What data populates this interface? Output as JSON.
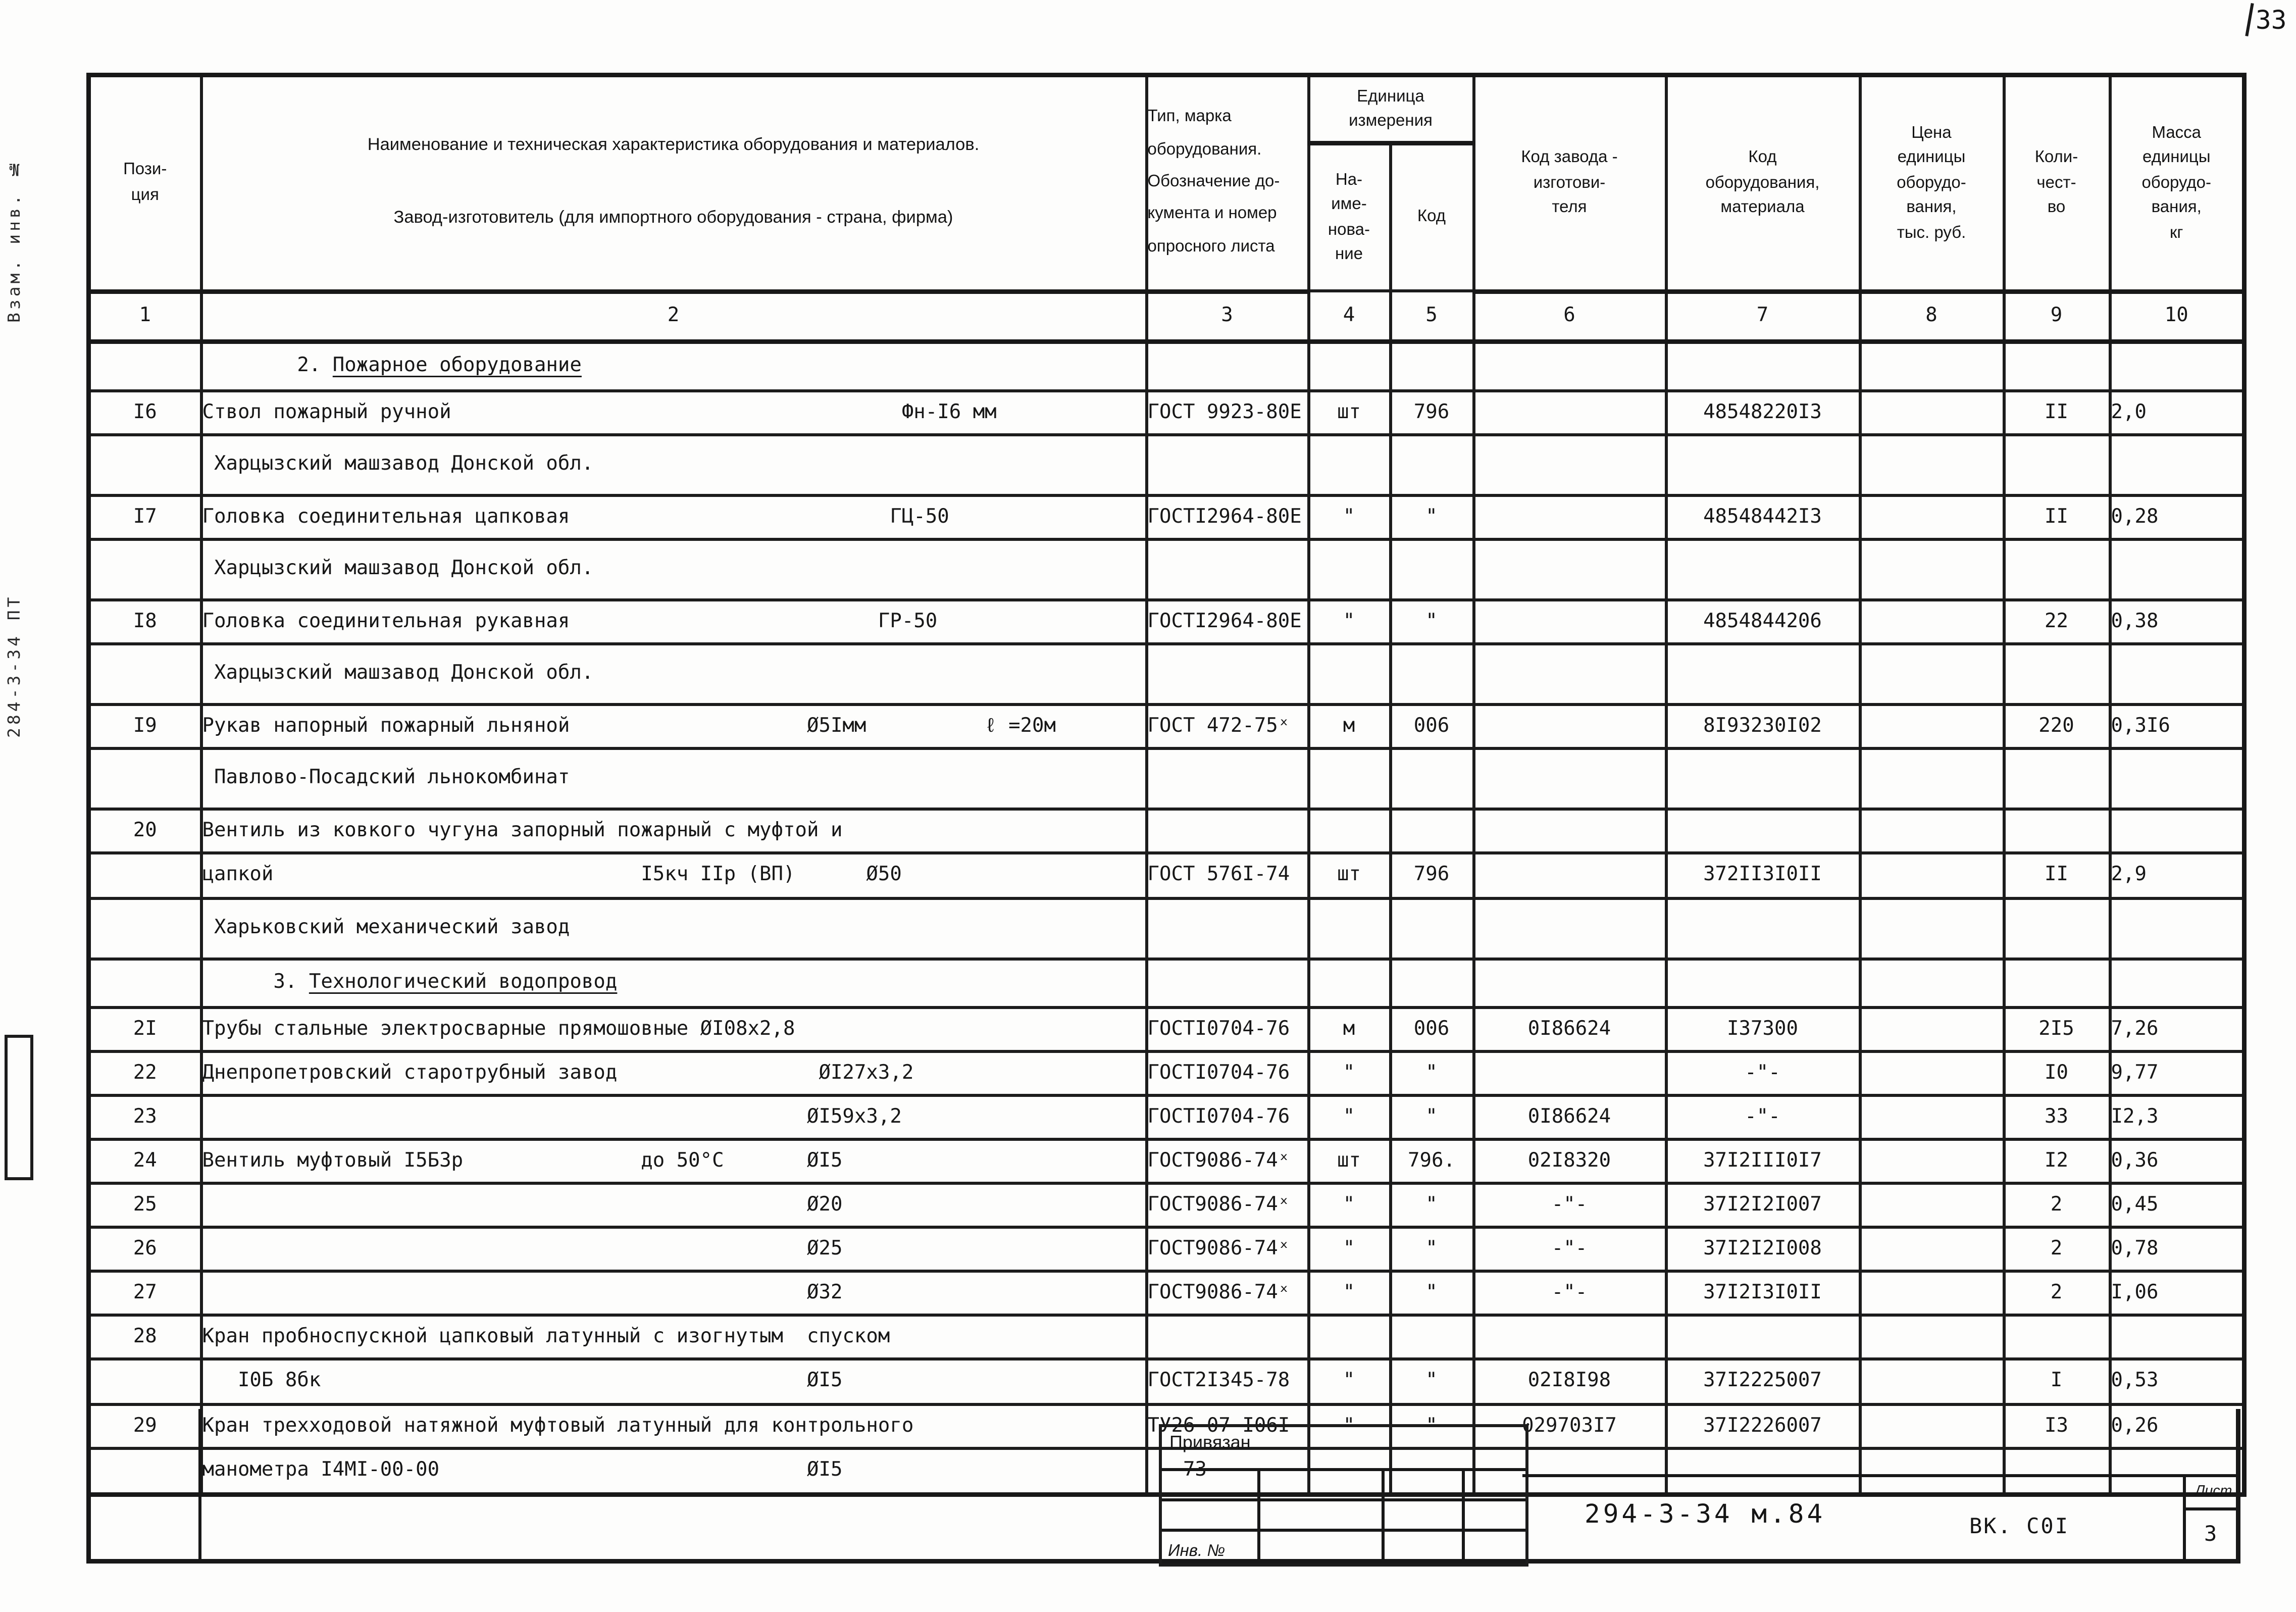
{
  "page": {
    "corner_number": "33",
    "margin_note_1": "Взам. инв. №",
    "margin_note_2": "284-3-34 ПТ"
  },
  "table": {
    "header": {
      "pos": "Пози-\nция",
      "name_line1": "Наименование и техническая характеристика  оборудования и материалов.",
      "name_line2": "Завод-изготовитель  (для импортного оборудования -  страна, фирма)",
      "type": "Тип,      марка\nоборудования.\nОбозначение  до-\nкумента  и  номер\nопросного  листа",
      "unit_group": "Единица\nизмерения",
      "unit_name": "На-\nиме-\nнова-\nние",
      "unit_code": "Код",
      "factory": "Код  завода -\nизготови-\nтеля",
      "equip": "Код\nоборудования,\nматериала",
      "price": "Цена\nединицы\nоборудо-\nвания,\nтыс. руб.",
      "qty": "Коли-\nчест-\nво",
      "mass": "Масса\nединицы\nоборудо-\nвания,\nкг"
    },
    "col_numbers": [
      "1",
      "2",
      "3",
      "4",
      "5",
      "6",
      "7",
      "8",
      "9",
      "10"
    ],
    "rows": [
      {
        "kind": "section",
        "pre": "        2. ",
        "title": "Пожарное оборудование"
      },
      {
        "kind": "item",
        "pos": "I6",
        "name": "Ствол пожарный ручной                                      Фн-I6 мм",
        "doc": "ГОСТ 9923-80Е",
        "un": "шт",
        "uc": "796",
        "fc": "",
        "ec": "48548220I3",
        "pr": "",
        "qty": "II",
        "mass": "2,0"
      },
      {
        "kind": "sub",
        "name": " Харцызский машзавод Донской обл."
      },
      {
        "kind": "item",
        "pos": "I7",
        "name": "Головка соединительная цапковая                           ГЦ-50",
        "doc": "ГОСТI2964-80Е",
        "un": "\"",
        "uc": "\"",
        "fc": "",
        "ec": "48548442I3",
        "pr": "",
        "qty": "II",
        "mass": "0,28"
      },
      {
        "kind": "sub",
        "name": " Харцызский машзавод Донской обл."
      },
      {
        "kind": "item",
        "pos": "I8",
        "name": "Головка соединительная рукавная                          ГР-50",
        "doc": "ГОСТI2964-80Е",
        "un": "\"",
        "uc": "\"",
        "fc": "",
        "ec": "4854844206",
        "pr": "",
        "qty": "22",
        "mass": "0,38"
      },
      {
        "kind": "sub",
        "name": " Харцызский машзавод Донской обл."
      },
      {
        "kind": "item",
        "pos": "I9",
        "name": "Рукав напорный пожарный льняной                    Ø5Iмм          ℓ =20м",
        "doc": "ГОСТ 472-75ˣ",
        "un": "м",
        "uc": "006",
        "fc": "",
        "ec": "8I93230I02",
        "pr": "",
        "qty": "220",
        "mass": "0,3I6"
      },
      {
        "kind": "sub",
        "name": " Павлово-Посадский льнокомбинат"
      },
      {
        "kind": "item",
        "pos": "20",
        "name": "Вентиль из ковкого чугуна запорный пожарный с муфтой и",
        "doc": "",
        "un": "",
        "uc": "",
        "fc": "",
        "ec": "",
        "pr": "",
        "qty": "",
        "mass": ""
      },
      {
        "kind": "cont",
        "name": "цапкой                               I5кч IIр (ВП)      Ø50",
        "doc": "ГОСТ 576I-74",
        "un": "шт",
        "uc": "796",
        "fc": "",
        "ec": "372II3I0II",
        "pr": "",
        "qty": "II",
        "mass": "2,9"
      },
      {
        "kind": "sub",
        "name": " Харьковский механический завод"
      },
      {
        "kind": "section",
        "pre": "      3. ",
        "title": "Технологический водопровод"
      },
      {
        "kind": "item",
        "pos": "2I",
        "name": "Трубы стальные электросварные прямошовные ØI08х2,8",
        "doc": "ГОСТI0704-76",
        "un": "м",
        "uc": "006",
        "fc": "0I86624",
        "ec": "I37300",
        "pr": "",
        "qty": "2I5",
        "mass": "7,26"
      },
      {
        "kind": "item",
        "pos": "22",
        "name": "Днепропетровский старотрубный завод                 ØI27х3,2",
        "doc": "ГОСТI0704-76",
        "un": "\"",
        "uc": "\"",
        "fc": "",
        "ec": "-\"-",
        "pr": "",
        "qty": "I0",
        "mass": "9,77"
      },
      {
        "kind": "item",
        "pos": "23",
        "name": "                                                   ØI59х3,2",
        "doc": "ГОСТI0704-76",
        "un": "\"",
        "uc": "\"",
        "fc": "0I86624",
        "ec": "-\"-",
        "pr": "",
        "qty": "33",
        "mass": "I2,3"
      },
      {
        "kind": "item",
        "pos": "24",
        "name": "Вентиль муфтовый I5Б3р               до 50°С       ØI5",
        "doc": "ГОСТ9086-74ˣ",
        "un": "шт",
        "uc": "796.",
        "fc": "02I8320",
        "ec": "37I2III0I7",
        "pr": "",
        "qty": "I2",
        "mass": "0,36"
      },
      {
        "kind": "item",
        "pos": "25",
        "name": "                                                   Ø20",
        "doc": "ГОСТ9086-74ˣ",
        "un": "\"",
        "uc": "\"",
        "fc": "-\"-",
        "ec": "37I2I2I007",
        "pr": "",
        "qty": "2",
        "mass": "0,45"
      },
      {
        "kind": "item",
        "pos": "26",
        "name": "                                                   Ø25",
        "doc": "ГОСТ9086-74ˣ",
        "un": "\"",
        "uc": "\"",
        "fc": "-\"-",
        "ec": "37I2I2I008",
        "pr": "",
        "qty": "2",
        "mass": "0,78"
      },
      {
        "kind": "item",
        "pos": "27",
        "name": "                                                   Ø32",
        "doc": "ГОСТ9086-74ˣ",
        "un": "\"",
        "uc": "\"",
        "fc": "-\"-",
        "ec": "37I2I3I0II",
        "pr": "",
        "qty": "2",
        "mass": "I,06"
      },
      {
        "kind": "item",
        "pos": "28",
        "name": "Кран пробноспускной цапковый латунный с изогнутым  спуском",
        "doc": "",
        "un": "",
        "uc": "",
        "fc": "",
        "ec": "",
        "pr": "",
        "qty": "",
        "mass": ""
      },
      {
        "kind": "cont",
        "name": "   I0Б 8бк                                         ØI5",
        "doc": "ГОСТ2I345-78",
        "un": "\"",
        "uc": "\"",
        "fc": "02I8I98",
        "ec": "37I2225007",
        "pr": "",
        "qty": "I",
        "mass": "0,53"
      },
      {
        "kind": "item",
        "pos": "29",
        "name": "Кран трехходовой натяжной муфтовый латунный для контрольного",
        "doc": "ТУ26-07-I06I-",
        "un": "\"",
        "uc": "\"",
        "fc": "029703I7",
        "ec": "37I2226007",
        "pr": "",
        "qty": "I3",
        "mass": "0,26"
      },
      {
        "kind": "cont",
        "name": "манометра I4МI-00-00                               ØI5",
        "doc": "  -73",
        "un": "",
        "uc": "",
        "fc": "",
        "ec": "",
        "pr": "",
        "qty": "",
        "mass": ""
      }
    ]
  },
  "footer": {
    "privyazan": "Привязан",
    "inv": "Инв. №",
    "doc_number": "294-3-34 м.84",
    "dept": "ВК. С0I",
    "sheet_label": "Лист",
    "sheet_number": "3"
  }
}
